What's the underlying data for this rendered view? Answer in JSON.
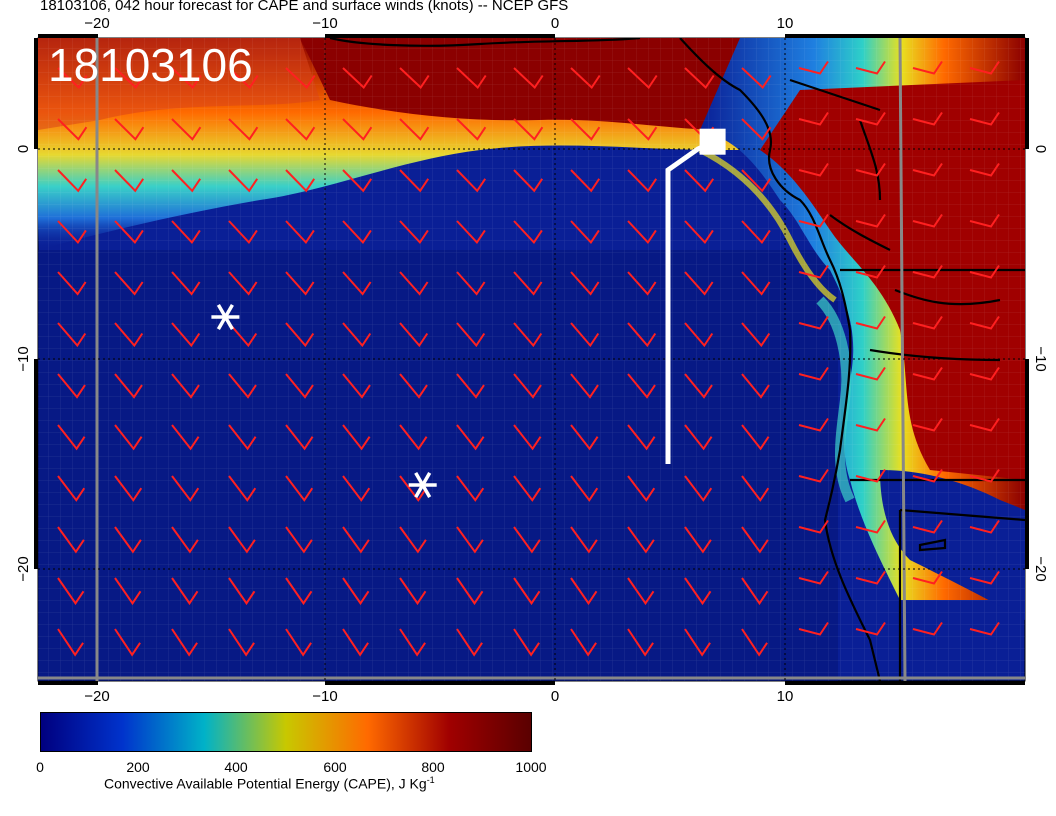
{
  "title": "18103106, 042 hour forecast for CAPE and surface winds (knots) -- NCEP GFS",
  "stamp": "18103106",
  "axes": {
    "x_ticks_top": [
      "−20",
      "−10",
      "0",
      "10"
    ],
    "x_ticks_bottom": [
      "−20",
      "−10",
      "0",
      "10"
    ],
    "y_ticks_left": [
      "0",
      "−10",
      "−20"
    ],
    "y_ticks_right": [
      "0",
      "−10",
      "−20"
    ]
  },
  "colorbar": {
    "labels": [
      "0",
      "200",
      "400",
      "600",
      "800",
      "1000"
    ],
    "title": "Convective Available Potential Energy (CAPE), J Kg",
    "title_sup": "-1",
    "colors": [
      "#00007f",
      "#0033cc",
      "#00b2c8",
      "#c8c800",
      "#ff6a00",
      "#a00000",
      "#5a0000"
    ]
  },
  "markers": [
    {
      "name": "asterisk",
      "lon": -14.4,
      "lat": -8.0
    },
    {
      "name": "asterisk",
      "lon": -5.8,
      "lat": -16.0
    }
  ],
  "track": [
    {
      "lon": 4.9,
      "lat": -15.0
    },
    {
      "lon": 4.9,
      "lat": -1.0
    },
    {
      "lon": 6.2,
      "lat": 0.0
    },
    {
      "lon": 6.8,
      "lat": 0.3
    }
  ],
  "track_end_marker": {
    "lon": 6.8,
    "lat": 0.3
  },
  "colors": {
    "ocean": "#0a1f96",
    "deep_ocean": "#061478",
    "hot": "#8b0000",
    "wind_barb": "#ff2020",
    "track": "#ffffff"
  }
}
